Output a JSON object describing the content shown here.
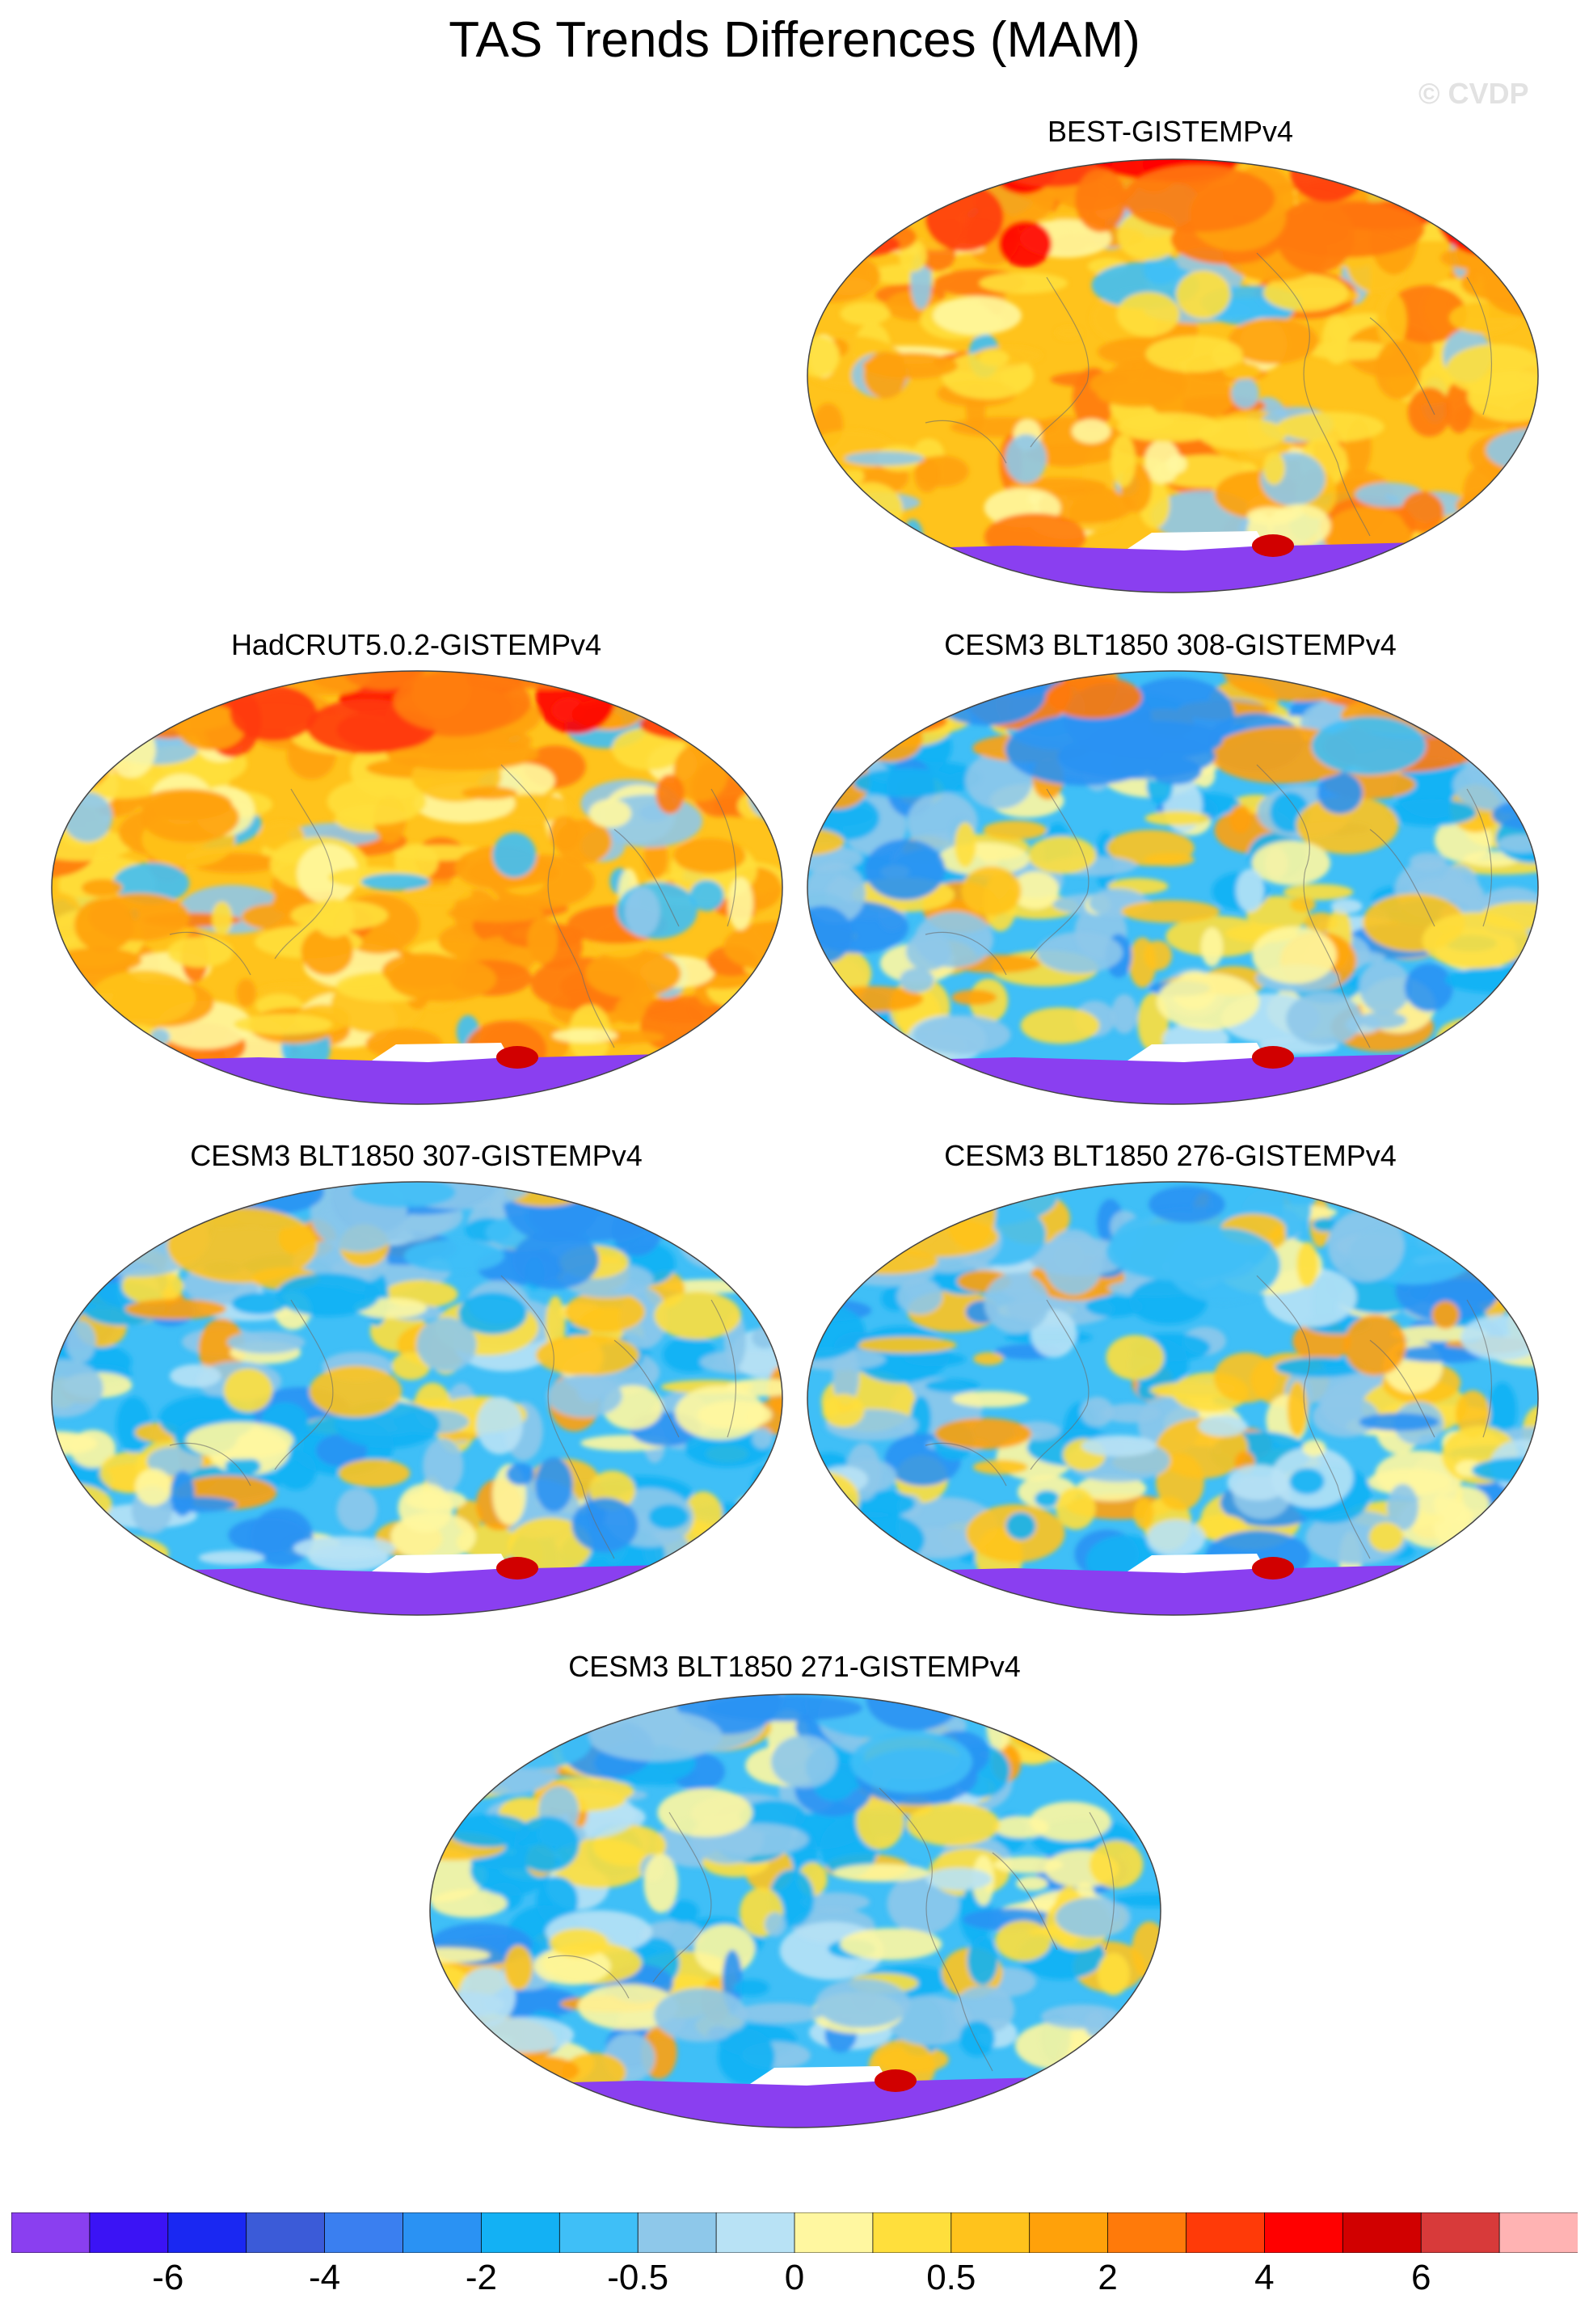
{
  "title": "TAS Trends Differences (MAM)",
  "watermark": "© CVDP",
  "panels": [
    {
      "title": "BEST-GISTEMPv4",
      "pattern": "warm-strong"
    },
    {
      "title": "HadCRUT5.0.2-GISTEMPv4",
      "pattern": "warm-strong"
    },
    {
      "title": "CESM3 BLT1850 308-GISTEMPv4",
      "pattern": "cool-mixed"
    },
    {
      "title": "CESM3 BLT1850 307-GISTEMPv4",
      "pattern": "cool"
    },
    {
      "title": "CESM3 BLT1850 276-GISTEMPv4",
      "pattern": "cool"
    },
    {
      "title": "CESM3 BLT1850 271-GISTEMPv4",
      "pattern": "cool"
    }
  ],
  "colorbar": {
    "colors": [
      "#8a3ff0",
      "#3b13f5",
      "#1a28f2",
      "#3b5bd8",
      "#3a7ff0",
      "#2a92f3",
      "#13b1f4",
      "#3fbff7",
      "#8ec8ea",
      "#b8e2f5",
      "#fff7a0",
      "#ffdf3c",
      "#ffc31c",
      "#ffa10a",
      "#ff7a0a",
      "#ff3a08",
      "#ff0000",
      "#d10000",
      "#d83a3a",
      "#ffb3b3"
    ],
    "labels": [
      "-6",
      "-4",
      "-2",
      "-0.5",
      "0",
      "0.5",
      "2",
      "4",
      "6"
    ]
  }
}
